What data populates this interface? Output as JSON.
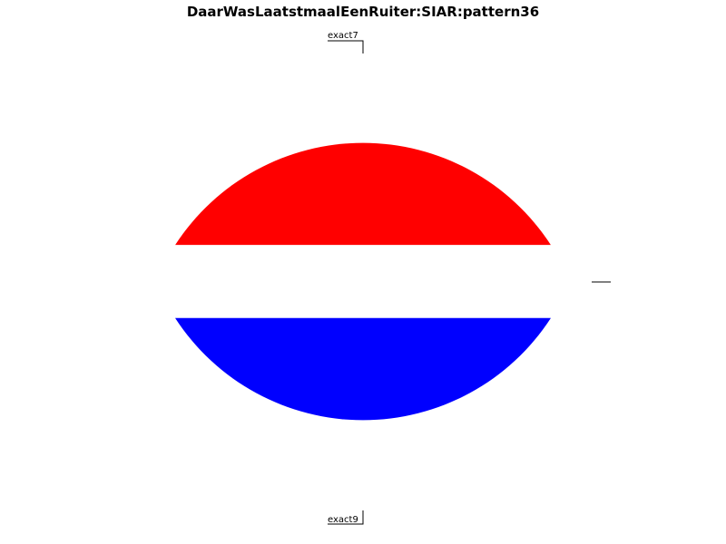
{
  "chart_data": {
    "type": "pie",
    "title": "DaarWasLaatstmaalEenRuiter:SIAR:pattern36",
    "slices": [
      {
        "label": "exact7",
        "value": 1,
        "color": "#ff0000"
      },
      {
        "label": "",
        "value": 0.39,
        "color": "#ffffff"
      },
      {
        "label": "exact9",
        "value": 1,
        "color": "#0000ff"
      }
    ],
    "legend": false
  }
}
